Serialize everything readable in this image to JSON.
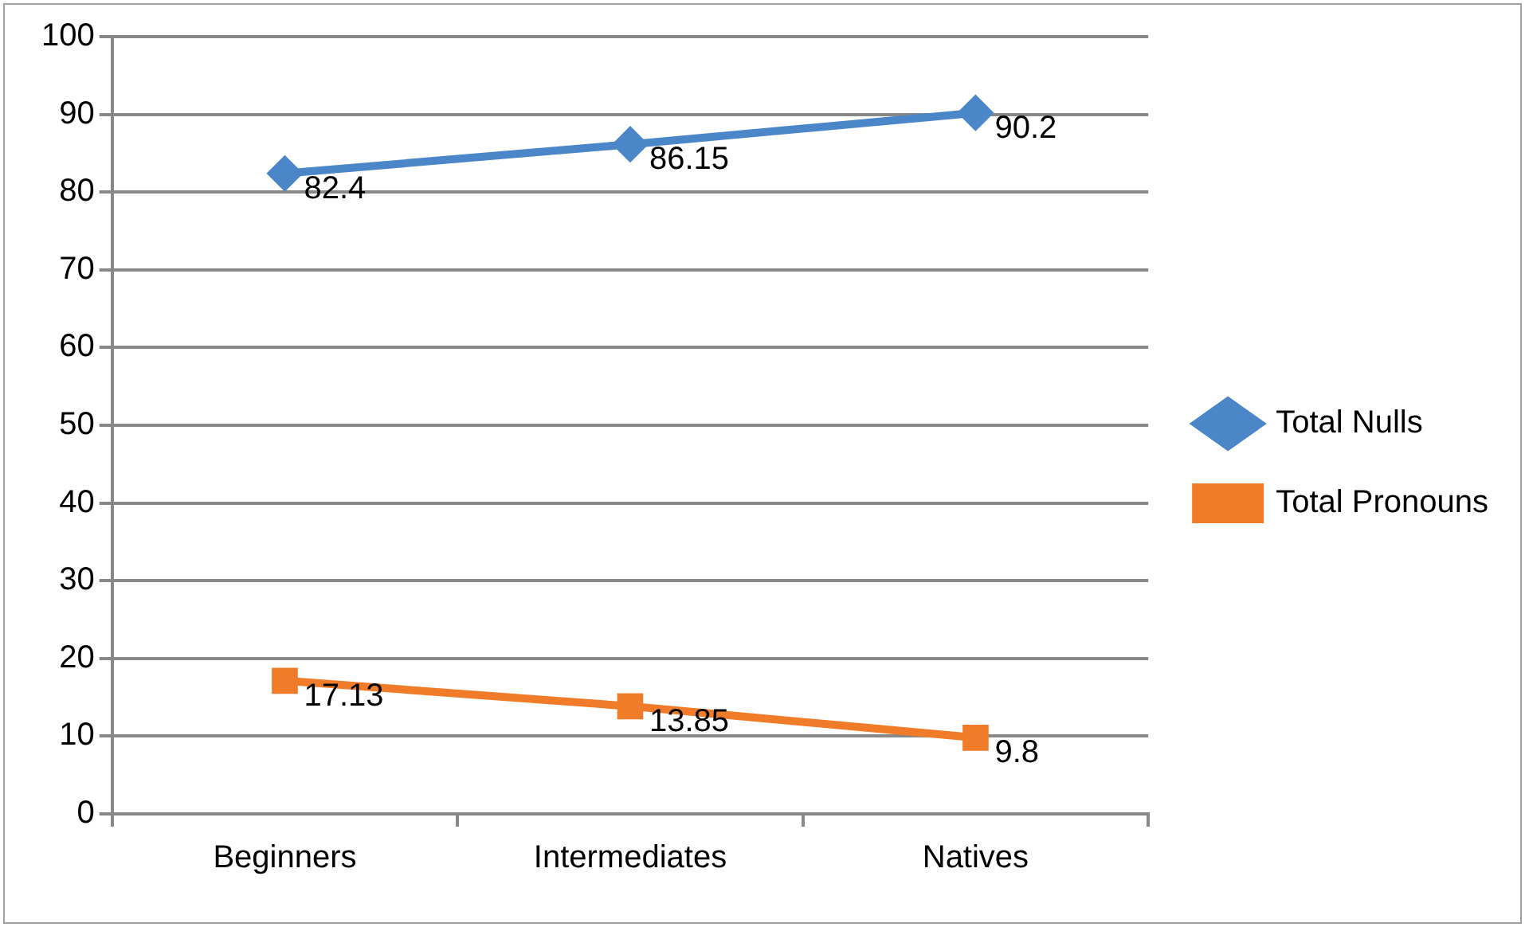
{
  "chart_data": {
    "type": "line",
    "categories": [
      "Beginners",
      "Intermediates",
      "Natives"
    ],
    "series": [
      {
        "name": "Total Nulls",
        "color": "#4a86c8",
        "values": [
          82.4,
          86.15,
          90.2
        ],
        "marker": "diamond"
      },
      {
        "name": "Total Pronouns",
        "color": "#f07c2a",
        "values": [
          17.13,
          13.85,
          9.8
        ],
        "marker": "square"
      }
    ],
    "ylim": [
      0,
      100
    ],
    "yticks": [
      0,
      10,
      20,
      30,
      40,
      50,
      60,
      70,
      80,
      90,
      100
    ],
    "grid": "y",
    "legend": "right",
    "data_labels": true,
    "line_style": "solid"
  }
}
